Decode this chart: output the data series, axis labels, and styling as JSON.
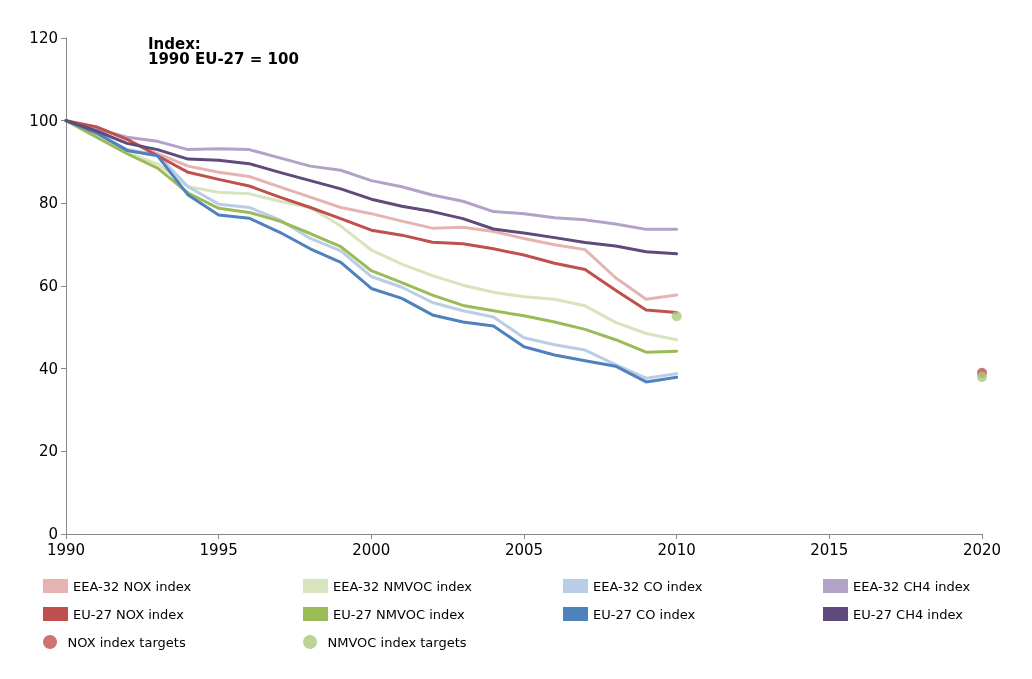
{
  "chart_data": {
    "type": "line",
    "annotations": [
      "Index:\n1990 EU-27 = 100"
    ],
    "x": [
      1990,
      1991,
      1992,
      1993,
      1994,
      1995,
      1996,
      1997,
      1998,
      1999,
      2000,
      2001,
      2002,
      2003,
      2004,
      2005,
      2006,
      2007,
      2008,
      2009,
      2010,
      2020
    ],
    "xlim": [
      1990,
      2020
    ],
    "xticks": [
      1990,
      1995,
      2000,
      2005,
      2010,
      2015,
      2020
    ],
    "ylim": [
      0,
      120
    ],
    "yticks": [
      0,
      20,
      40,
      60,
      80,
      100,
      120
    ],
    "grid": false,
    "legend": "bottom",
    "marker": "none",
    "line_style": "solid",
    "series": [
      {
        "name": "EEA-32 NOX index",
        "color": "#e6b3b3",
        "values": [
          100,
          98.5,
          95.5,
          92,
          89,
          87.5,
          86.5,
          84,
          81.5,
          79,
          77.5,
          75.7,
          74,
          74.2,
          73.2,
          71.5,
          70,
          68.8,
          62,
          56.8,
          57.8,
          null
        ]
      },
      {
        "name": "EEA-32 NMVOC index",
        "color": "#d7e4bd",
        "values": [
          100,
          96.3,
          92.3,
          89.5,
          84,
          82.7,
          82.3,
          80.5,
          79,
          74.5,
          68.7,
          65.3,
          62.5,
          60.2,
          58.5,
          57.4,
          56.8,
          55.2,
          51.2,
          48.5,
          47,
          null
        ]
      },
      {
        "name": "EEA-32 CO index",
        "color": "#b9cde5",
        "values": [
          100,
          97,
          93,
          91.7,
          84,
          79.8,
          79,
          76,
          71.5,
          68.5,
          62.3,
          59.7,
          56,
          54,
          52.5,
          47.5,
          45.8,
          44.5,
          41,
          37.7,
          38.8,
          null
        ]
      },
      {
        "name": "EEA-32 CH4 index",
        "color": "#b3a2c7",
        "values": [
          100,
          98,
          96,
          95,
          93,
          93.2,
          93,
          91,
          89,
          88,
          85.5,
          84,
          82,
          80.5,
          78,
          77.5,
          76.5,
          76,
          75,
          73.7,
          73.7,
          null
        ]
      },
      {
        "name": "EU-27 NOX index",
        "color": "#c0504d",
        "values": [
          100,
          98.5,
          95.5,
          91.5,
          87.5,
          85.8,
          84.2,
          81.5,
          79,
          76.3,
          73.5,
          72.3,
          70.6,
          70.2,
          69,
          67.5,
          65.5,
          64,
          59,
          54.2,
          53.6,
          null
        ]
      },
      {
        "name": "EU-27 NMVOC index",
        "color": "#9bbb59",
        "values": [
          100,
          96,
          92,
          88.5,
          82.5,
          78.8,
          77.8,
          75.7,
          72.7,
          69.5,
          63.7,
          60.8,
          57.8,
          55.3,
          54,
          52.8,
          51.3,
          49.5,
          47,
          44,
          44.2,
          null
        ]
      },
      {
        "name": "EU-27 CO index",
        "color": "#4f81bd",
        "values": [
          100,
          97,
          92.8,
          91.5,
          82,
          77.2,
          76.4,
          73,
          69,
          65.7,
          59.4,
          57,
          53,
          51.3,
          50.3,
          45.3,
          43.3,
          41.9,
          40.6,
          36.8,
          37.9,
          null
        ]
      },
      {
        "name": "EU-27 CH4 index",
        "color": "#604a7b",
        "values": [
          100,
          97.5,
          94.5,
          93,
          90.7,
          90.4,
          89.6,
          87.5,
          85.5,
          83.5,
          81,
          79.3,
          78,
          76.3,
          73.8,
          72.8,
          71.7,
          70.5,
          69.7,
          68.3,
          67.8,
          null
        ]
      },
      {
        "name": "NOX index targets",
        "type": "scatter",
        "marker": "circle",
        "color": "#c0504d",
        "values": [
          null,
          null,
          null,
          null,
          null,
          null,
          null,
          null,
          null,
          null,
          null,
          null,
          null,
          null,
          null,
          null,
          null,
          null,
          null,
          null,
          null,
          39
        ]
      },
      {
        "name": "NMVOC index targets",
        "type": "scatter",
        "marker": "circle",
        "color": "#a9c97e",
        "values": [
          null,
          null,
          null,
          null,
          null,
          null,
          null,
          null,
          null,
          null,
          null,
          null,
          null,
          null,
          null,
          null,
          null,
          null,
          null,
          null,
          52.7,
          38
        ]
      }
    ]
  }
}
